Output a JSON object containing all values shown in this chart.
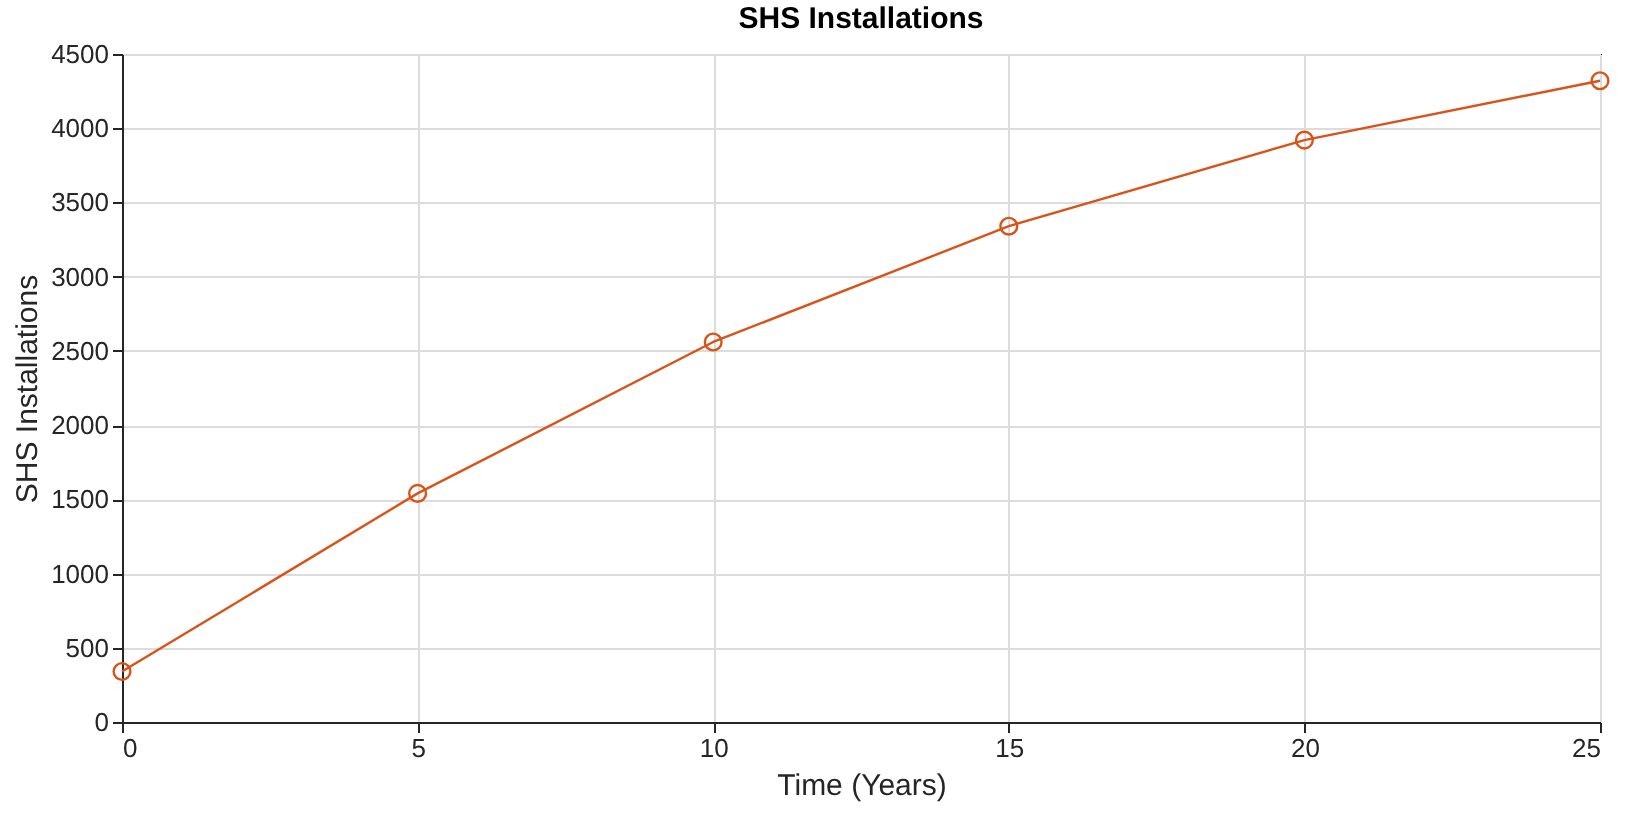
{
  "chart_data": {
    "type": "line",
    "title": "SHS Installations",
    "xlabel": "Time (Years)",
    "ylabel": "SHS Installations",
    "x": [
      0,
      5,
      10,
      15,
      20,
      25
    ],
    "series": [
      {
        "color": "#d95319",
        "values": [
          340,
          1540,
          2560,
          3340,
          3920,
          4320
        ]
      }
    ],
    "xlim": [
      0,
      25
    ],
    "xticks": [
      0,
      5,
      10,
      15,
      20,
      25
    ],
    "ylim": [
      0,
      4500
    ],
    "yticks": [
      0,
      500,
      1000,
      1500,
      2000,
      2500,
      3000,
      3500,
      4000,
      4500
    ],
    "grid": true,
    "marker": "circle",
    "line_style": "solid",
    "legend": false
  }
}
